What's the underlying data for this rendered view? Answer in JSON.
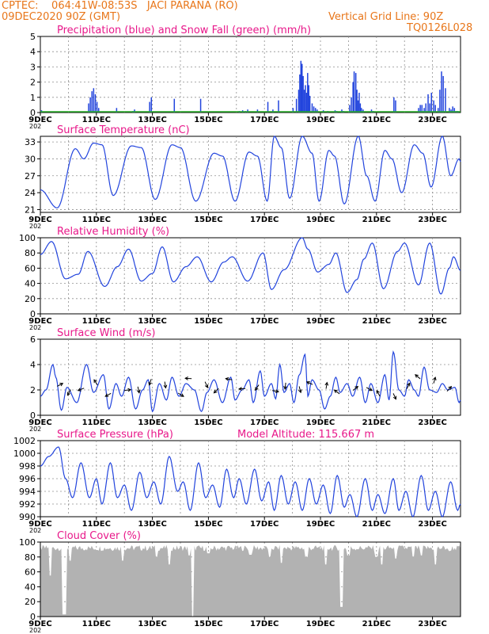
{
  "header": {
    "line1_left": "CPTEC:    064:41W-08:53S   JACI PARANA (RO)",
    "line2_left": "09DEC2020 90Z (GMT)",
    "line2_right": "Vertical Grid Line: 90Z",
    "code": "TQ0126L028"
  },
  "colors": {
    "header": "#e8761a",
    "title": "#e8188a",
    "line": "#2244dd",
    "snow": "#22aa22",
    "cloud": "#b2b2b2",
    "grid": "#909090"
  },
  "x_ticks": [
    "9DEC",
    "11DEC",
    "13DEC",
    "15DEC",
    "17DEC",
    "19DEC",
    "21DEC",
    "23DEC"
  ],
  "x_range_days": [
    9,
    24
  ],
  "year_fragment": "202",
  "chart_data": [
    {
      "id": "precip",
      "type": "bar",
      "title": "Precipitation (blue) and Snow Fall (green) (mm/h)",
      "ylim": [
        0,
        5
      ],
      "yticks": [
        "0",
        "1",
        "2",
        "3",
        "4",
        "5"
      ],
      "series": [
        {
          "name": "Precipitation",
          "color": "#2244dd",
          "x": [
            9.04,
            10.72,
            10.78,
            10.84,
            10.9,
            10.96,
            11.02,
            11.08,
            11.72,
            12.3,
            12.36,
            12.9,
            12.96,
            13.78,
            14.72,
            16.1,
            16.22,
            16.32,
            16.4,
            16.75,
            17.12,
            17.3,
            17.5,
            18.02,
            18.14,
            18.22,
            18.26,
            18.3,
            18.34,
            18.38,
            18.42,
            18.46,
            18.5,
            18.54,
            18.58,
            18.62,
            18.7,
            18.76,
            18.82,
            18.88,
            19.1,
            19.26,
            19.52,
            19.58,
            19.76,
            19.82,
            20.04,
            20.1,
            20.16,
            20.2,
            20.26,
            20.3,
            20.34,
            20.38,
            20.42,
            20.46,
            20.52,
            20.82,
            20.88,
            21.62,
            21.68,
            22.5,
            22.56,
            22.62,
            22.7,
            22.76,
            22.84,
            22.9,
            22.96,
            23.04,
            23.1,
            23.2,
            23.26,
            23.32,
            23.38,
            23.46,
            23.6,
            23.66,
            23.72,
            23.78,
            23.84,
            23.9
          ],
          "y": [
            0.15,
            0.6,
            1.0,
            1.4,
            1.6,
            1.2,
            0.7,
            0.3,
            0.3,
            0.1,
            0.2,
            0.7,
            1.0,
            0.9,
            0.9,
            0.1,
            0.15,
            0.1,
            0.2,
            0.2,
            0.7,
            0.2,
            0.8,
            0.3,
            0.9,
            1.5,
            2.5,
            3.4,
            3.2,
            2.4,
            1.5,
            1.8,
            1.3,
            2.6,
            1.8,
            1.1,
            0.6,
            0.4,
            0.3,
            0.2,
            0.15,
            0.1,
            0.15,
            0.1,
            0.2,
            0.1,
            0.5,
            1.0,
            2.0,
            2.7,
            2.6,
            1.5,
            0.8,
            1.3,
            0.6,
            0.3,
            0.2,
            0.2,
            0.1,
            1.0,
            0.8,
            0.3,
            0.5,
            0.5,
            0.3,
            0.6,
            1.2,
            0.6,
            1.3,
            0.8,
            0.5,
            0.3,
            1.5,
            2.7,
            2.4,
            1.6,
            0.3,
            0.2,
            0.4,
            0.3,
            0.1,
            0.1
          ]
        },
        {
          "name": "Snow Fall",
          "color": "#22aa22",
          "constant": 0
        }
      ]
    },
    {
      "id": "temp",
      "type": "line",
      "title": "Surface Temperature (nC)",
      "ylim": [
        20.5,
        34
      ],
      "yticks": [
        "21",
        "24",
        "27",
        "30",
        "33"
      ],
      "ytick_values": [
        21,
        24,
        27,
        30,
        33
      ],
      "peaks": [
        [
          9.0,
          24.5
        ],
        [
          9.6,
          21.3
        ],
        [
          10.25,
          31.8
        ],
        [
          10.55,
          30.0
        ],
        [
          10.9,
          32.8
        ],
        [
          11.2,
          32.5
        ],
        [
          11.6,
          23.5
        ],
        [
          12.25,
          32.3
        ],
        [
          12.6,
          32.0
        ],
        [
          13.1,
          22.8
        ],
        [
          13.7,
          32.5
        ],
        [
          14.0,
          32.0
        ],
        [
          14.55,
          22.5
        ],
        [
          15.2,
          31.0
        ],
        [
          15.5,
          30.5
        ],
        [
          15.95,
          22.5
        ],
        [
          16.45,
          31.2
        ],
        [
          16.75,
          30.5
        ],
        [
          17.1,
          22.5
        ],
        [
          17.35,
          34.0
        ],
        [
          17.6,
          32.0
        ],
        [
          17.9,
          23.0
        ],
        [
          18.35,
          34.0
        ],
        [
          18.7,
          31.0
        ],
        [
          18.95,
          22.5
        ],
        [
          19.3,
          31.5
        ],
        [
          19.5,
          30.5
        ],
        [
          19.85,
          22.0
        ],
        [
          20.35,
          34.0
        ],
        [
          20.65,
          27.0
        ],
        [
          20.95,
          22.5
        ],
        [
          21.3,
          31.5
        ],
        [
          21.55,
          30.0
        ],
        [
          21.9,
          24.0
        ],
        [
          22.35,
          32.5
        ],
        [
          22.65,
          31.0
        ],
        [
          22.95,
          25.0
        ],
        [
          23.35,
          34.0
        ],
        [
          23.65,
          27.0
        ],
        [
          23.95,
          30.0
        ],
        [
          24.0,
          29.5
        ]
      ]
    },
    {
      "id": "rh",
      "type": "line",
      "title": "Relative Humidity (%)",
      "ylim": [
        0,
        100
      ],
      "yticks": [
        "0",
        "20",
        "40",
        "60",
        "80",
        "100"
      ],
      "ytick_values": [
        0,
        20,
        40,
        60,
        80,
        100
      ],
      "peaks": [
        [
          9.0,
          78
        ],
        [
          9.4,
          95
        ],
        [
          9.9,
          46
        ],
        [
          10.35,
          52
        ],
        [
          10.7,
          82
        ],
        [
          11.3,
          36
        ],
        [
          11.75,
          62
        ],
        [
          12.15,
          85
        ],
        [
          12.6,
          43
        ],
        [
          13.0,
          53
        ],
        [
          13.35,
          88
        ],
        [
          13.75,
          42
        ],
        [
          14.2,
          62
        ],
        [
          14.6,
          75
        ],
        [
          15.1,
          42
        ],
        [
          15.55,
          68
        ],
        [
          15.85,
          75
        ],
        [
          16.4,
          43
        ],
        [
          16.95,
          80
        ],
        [
          17.25,
          32
        ],
        [
          17.7,
          58
        ],
        [
          18.35,
          100
        ],
        [
          18.55,
          85
        ],
        [
          18.9,
          55
        ],
        [
          19.3,
          65
        ],
        [
          19.55,
          80
        ],
        [
          19.95,
          28
        ],
        [
          20.3,
          45
        ],
        [
          20.55,
          72
        ],
        [
          20.85,
          93
        ],
        [
          21.25,
          33
        ],
        [
          21.75,
          82
        ],
        [
          22.0,
          93
        ],
        [
          22.5,
          38
        ],
        [
          22.9,
          93
        ],
        [
          23.3,
          26
        ],
        [
          23.6,
          60
        ],
        [
          23.75,
          75
        ],
        [
          24.0,
          57
        ]
      ]
    },
    {
      "id": "wind",
      "type": "line",
      "title": "Surface Wind (m/s)",
      "ylim": [
        0,
        6
      ],
      "yticks": [
        "0",
        "2",
        "4",
        "6"
      ],
      "ytick_values": [
        0,
        2,
        4,
        6
      ],
      "peaks": [
        [
          9.0,
          1.5
        ],
        [
          9.2,
          2.0
        ],
        [
          9.45,
          4.0
        ],
        [
          9.55,
          3.0
        ],
        [
          9.75,
          0.4
        ],
        [
          9.95,
          2.2
        ],
        [
          10.3,
          1.0
        ],
        [
          10.65,
          4.0
        ],
        [
          10.9,
          1.8
        ],
        [
          11.25,
          3.2
        ],
        [
          11.45,
          0.5
        ],
        [
          11.7,
          2.5
        ],
        [
          11.9,
          1.5
        ],
        [
          12.15,
          3.0
        ],
        [
          12.4,
          0.5
        ],
        [
          12.65,
          2.0
        ],
        [
          12.85,
          2.8
        ],
        [
          13.0,
          0.3
        ],
        [
          13.25,
          2.5
        ],
        [
          13.5,
          1.2
        ],
        [
          13.7,
          3.0
        ],
        [
          13.95,
          1.5
        ],
        [
          14.2,
          2.5
        ],
        [
          14.5,
          2.0
        ],
        [
          14.75,
          0.3
        ],
        [
          14.95,
          1.8
        ],
        [
          15.2,
          2.8
        ],
        [
          15.5,
          1.0
        ],
        [
          15.8,
          3.0
        ],
        [
          15.95,
          1.2
        ],
        [
          16.2,
          2.0
        ],
        [
          16.45,
          2.8
        ],
        [
          16.6,
          1.0
        ],
        [
          16.85,
          3.5
        ],
        [
          17.0,
          1.5
        ],
        [
          17.25,
          2.5
        ],
        [
          17.4,
          1.3
        ],
        [
          17.55,
          4.0
        ],
        [
          17.7,
          1.8
        ],
        [
          17.9,
          2.5
        ],
        [
          18.05,
          1.0
        ],
        [
          18.25,
          3.2
        ],
        [
          18.45,
          4.8
        ],
        [
          18.55,
          1.5
        ],
        [
          18.7,
          2.8
        ],
        [
          18.95,
          2.0
        ],
        [
          19.15,
          0.5
        ],
        [
          19.35,
          1.5
        ],
        [
          19.55,
          3.0
        ],
        [
          19.7,
          1.8
        ],
        [
          19.95,
          2.5
        ],
        [
          20.15,
          1.5
        ],
        [
          20.4,
          3.0
        ],
        [
          20.6,
          1.0
        ],
        [
          20.8,
          2.5
        ],
        [
          21.05,
          1.0
        ],
        [
          21.3,
          3.2
        ],
        [
          21.45,
          1.2
        ],
        [
          21.6,
          5.0
        ],
        [
          21.8,
          2.0
        ],
        [
          22.0,
          1.5
        ],
        [
          22.15,
          2.8
        ],
        [
          22.35,
          2.0
        ],
        [
          22.5,
          1.5
        ],
        [
          22.7,
          3.8
        ],
        [
          22.9,
          2.0
        ],
        [
          23.15,
          1.8
        ],
        [
          23.35,
          2.5
        ],
        [
          23.55,
          2.0
        ],
        [
          23.8,
          2.2
        ],
        [
          23.95,
          1.0
        ],
        [
          24.0,
          1.2
        ]
      ]
    },
    {
      "id": "pres",
      "type": "line",
      "title": "Surface Pressure (hPa)",
      "subtitle": "Model Altitude: 115.667 m",
      "ylim": [
        990,
        1002
      ],
      "yticks": [
        "990",
        "992",
        "994",
        "996",
        "998",
        "1000",
        "1002"
      ],
      "ytick_values": [
        990,
        992,
        994,
        996,
        998,
        1000,
        1002
      ],
      "peaks": [
        [
          9.0,
          998
        ],
        [
          9.3,
          999.5
        ],
        [
          9.65,
          1001
        ],
        [
          9.9,
          996
        ],
        [
          10.15,
          993
        ],
        [
          10.45,
          998.5
        ],
        [
          10.75,
          993
        ],
        [
          11.0,
          996
        ],
        [
          11.2,
          992
        ],
        [
          11.5,
          998.5
        ],
        [
          11.75,
          993
        ],
        [
          12.0,
          995
        ],
        [
          12.25,
          991
        ],
        [
          12.55,
          997
        ],
        [
          12.8,
          993
        ],
        [
          13.05,
          995.5
        ],
        [
          13.3,
          992
        ],
        [
          13.6,
          999.5
        ],
        [
          13.9,
          994
        ],
        [
          14.1,
          995.5
        ],
        [
          14.35,
          991
        ],
        [
          14.65,
          998.5
        ],
        [
          14.9,
          993
        ],
        [
          15.15,
          995
        ],
        [
          15.4,
          991.5
        ],
        [
          15.65,
          997.5
        ],
        [
          15.9,
          993
        ],
        [
          16.1,
          996
        ],
        [
          16.35,
          992
        ],
        [
          16.65,
          997.5
        ],
        [
          16.9,
          992.5
        ],
        [
          17.15,
          995.5
        ],
        [
          17.35,
          991
        ],
        [
          17.6,
          996.5
        ],
        [
          17.85,
          992
        ],
        [
          18.1,
          995.5
        ],
        [
          18.35,
          991
        ],
        [
          18.6,
          996
        ],
        [
          18.85,
          992
        ],
        [
          19.1,
          995
        ],
        [
          19.35,
          990.5
        ],
        [
          19.6,
          996.5
        ],
        [
          19.85,
          991.5
        ],
        [
          20.05,
          993.5
        ],
        [
          20.3,
          990
        ],
        [
          20.6,
          996
        ],
        [
          20.85,
          991
        ],
        [
          21.05,
          993.5
        ],
        [
          21.3,
          990.5
        ],
        [
          21.6,
          996
        ],
        [
          21.8,
          991
        ],
        [
          22.05,
          994
        ],
        [
          22.3,
          990
        ],
        [
          22.6,
          996.5
        ],
        [
          22.85,
          991
        ],
        [
          23.1,
          994
        ],
        [
          23.35,
          990
        ],
        [
          23.65,
          995.5
        ],
        [
          23.9,
          991
        ],
        [
          24.0,
          992
        ]
      ]
    },
    {
      "id": "cloud",
      "type": "area",
      "title": "Cloud Cover (%)",
      "ylim": [
        0,
        100
      ],
      "yticks": [
        "0",
        "20",
        "40",
        "60",
        "80",
        "100"
      ],
      "ytick_values": [
        0,
        20,
        40,
        60,
        80,
        100
      ],
      "base_level": 92,
      "dips": [
        [
          9.35,
          55
        ],
        [
          9.8,
          3
        ],
        [
          9.9,
          3
        ],
        [
          10.05,
          75
        ],
        [
          11.95,
          75
        ],
        [
          13.15,
          80
        ],
        [
          13.6,
          70
        ],
        [
          14.3,
          82
        ],
        [
          14.45,
          0
        ],
        [
          15.0,
          85
        ],
        [
          16.5,
          83
        ],
        [
          17.2,
          80
        ],
        [
          17.6,
          72
        ],
        [
          18.5,
          80
        ],
        [
          19.2,
          70
        ],
        [
          19.75,
          13
        ],
        [
          20.0,
          82
        ],
        [
          21.0,
          80
        ],
        [
          21.2,
          70
        ],
        [
          21.7,
          78
        ],
        [
          22.3,
          80
        ],
        [
          22.6,
          82
        ],
        [
          23.1,
          70
        ],
        [
          23.6,
          88
        ]
      ]
    }
  ]
}
